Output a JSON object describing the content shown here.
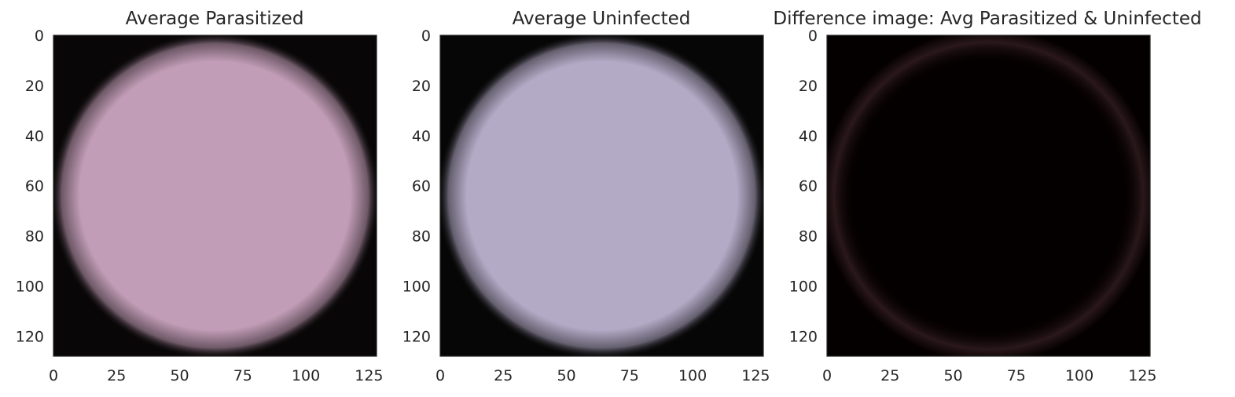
{
  "chart_data": [
    {
      "type": "heatmap",
      "title": "Average Parasitized",
      "xlim": [
        0,
        128
      ],
      "ylim": [
        128,
        0
      ],
      "xticks": [
        0,
        25,
        50,
        75,
        100,
        125
      ],
      "yticks": [
        0,
        20,
        40,
        60,
        80,
        100,
        120
      ],
      "grid": false,
      "image": {
        "shape": "disk",
        "center_color": "#c29db7",
        "edge_color": "#080606",
        "background": "#080606"
      }
    },
    {
      "type": "heatmap",
      "title": "Average Uninfected",
      "xlim": [
        0,
        128
      ],
      "ylim": [
        128,
        0
      ],
      "xticks": [
        0,
        25,
        50,
        75,
        100,
        125
      ],
      "yticks": [
        0,
        20,
        40,
        60,
        80,
        100,
        120
      ],
      "grid": false,
      "image": {
        "shape": "disk",
        "center_color": "#b3aac6",
        "edge_color": "#060606",
        "background": "#060606"
      }
    },
    {
      "type": "heatmap",
      "title": "Difference image: Avg Parasitized & Uninfected",
      "xlim": [
        0,
        128
      ],
      "ylim": [
        128,
        0
      ],
      "xticks": [
        0,
        25,
        50,
        75,
        100,
        125
      ],
      "yticks": [
        0,
        20,
        40,
        60,
        80,
        100,
        120
      ],
      "grid": false,
      "image": {
        "shape": "ring",
        "center_color": "#050000",
        "ring_color": "#3a2226",
        "background": "#050000"
      }
    }
  ]
}
